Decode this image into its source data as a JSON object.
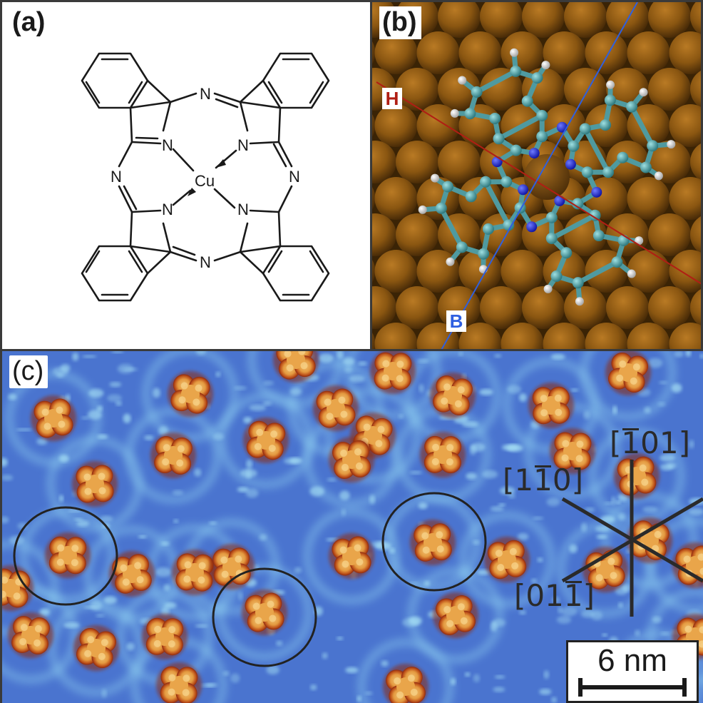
{
  "panels": {
    "a": {
      "label": "(a)",
      "atoms": {
        "n1": "N",
        "n2": "N",
        "n3": "N",
        "n4": "N",
        "n5": "N",
        "n6": "N",
        "n7": "N",
        "n8": "N",
        "cu": "Cu"
      }
    },
    "b": {
      "label": "(b)",
      "axis_h": "H",
      "axis_b": "B",
      "colors": {
        "axis_h": "#b01e14",
        "axis_b": "#2e5fe0",
        "carbon": "#4f9aa0",
        "nitrogen": "#1f2bd6",
        "hydrogen": "#e6e6e6",
        "substrate": "#8a5611"
      }
    },
    "c": {
      "label": "(c)",
      "directions": {
        "d1_digits": [
          "1",
          "1",
          "0"
        ],
        "d1_bar_index": 1,
        "d2_digits": [
          "1",
          "0",
          "1"
        ],
        "d2_bar_index": 0,
        "d3_digits": [
          "0",
          "1",
          "1"
        ],
        "d3_bar_index": 2
      },
      "scale_label": "6 nm",
      "colors": {
        "background": "#4a74cf",
        "molecule": "#e49a40",
        "rim": "#8e2a10"
      }
    }
  }
}
